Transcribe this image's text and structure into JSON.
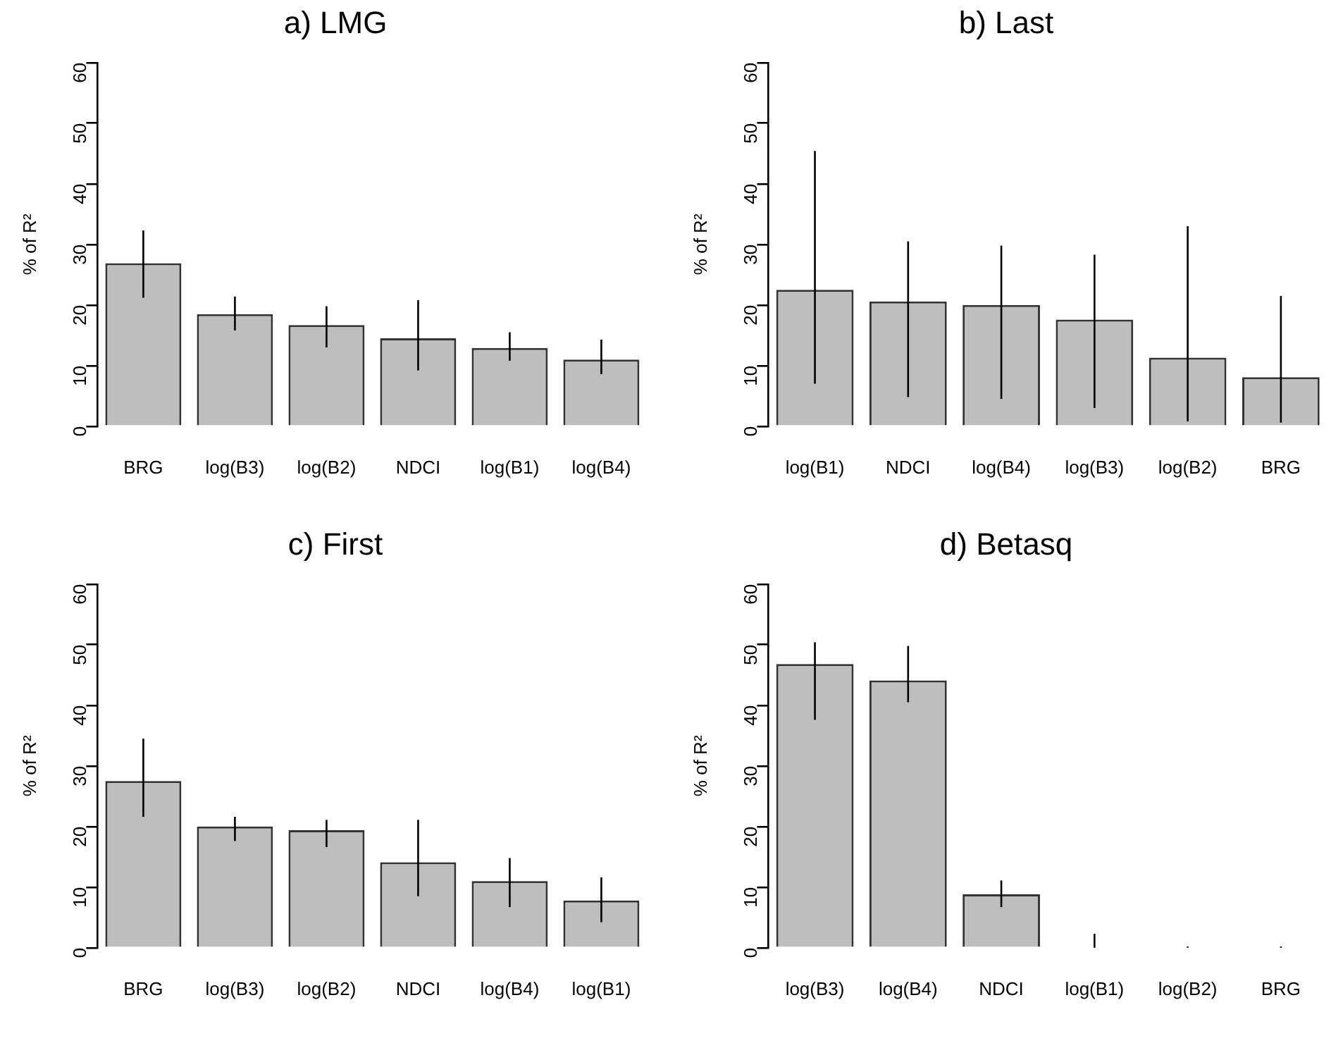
{
  "chart_data": [
    {
      "type": "bar",
      "title": "a) LMG",
      "ylabel": "% of R²",
      "categories": [
        "BRG",
        "log(B3)",
        "log(B2)",
        "NDCI",
        "log(B1)",
        "log(B4)"
      ],
      "values": [
        26.9,
        18.5,
        16.7,
        14.5,
        12.9,
        11.0
      ],
      "color": "#bebebe",
      "errors": [
        [
          21.2,
          32.3
        ],
        [
          15.8,
          21.4
        ],
        [
          13.0,
          19.8
        ],
        [
          9.2,
          20.8
        ],
        [
          10.8,
          15.5
        ],
        [
          8.6,
          14.3
        ]
      ],
      "ylim": [
        0,
        60
      ],
      "yticks": [
        0,
        10,
        20,
        30,
        40,
        50,
        60
      ],
      "grid": false,
      "legend": false
    },
    {
      "type": "bar",
      "title": "b) Last",
      "ylabel": "% of R²",
      "categories": [
        "log(B1)",
        "NDCI",
        "log(B4)",
        "log(B3)",
        "log(B2)",
        "BRG"
      ],
      "values": [
        22.5,
        20.6,
        20.0,
        17.6,
        11.3,
        8.1
      ],
      "color": "#bebebe",
      "errors": [
        [
          7.0,
          45.4
        ],
        [
          4.8,
          30.5
        ],
        [
          4.5,
          29.8
        ],
        [
          3.0,
          28.3
        ],
        [
          0.8,
          33.0
        ],
        [
          0.6,
          21.5
        ]
      ],
      "ylim": [
        0,
        60
      ],
      "yticks": [
        0,
        10,
        20,
        30,
        40,
        50,
        60
      ],
      "grid": false,
      "legend": false
    },
    {
      "type": "bar",
      "title": "c) First",
      "ylabel": "% of R²",
      "categories": [
        "BRG",
        "log(B3)",
        "log(B2)",
        "NDCI",
        "log(B4)",
        "log(B1)"
      ],
      "values": [
        27.5,
        20.0,
        19.4,
        14.1,
        11.0,
        7.8
      ],
      "color": "#bebebe",
      "errors": [
        [
          21.6,
          34.5
        ],
        [
          17.6,
          21.6
        ],
        [
          16.6,
          21.1
        ],
        [
          8.5,
          21.1
        ],
        [
          6.7,
          14.8
        ],
        [
          4.2,
          11.6
        ]
      ],
      "ylim": [
        0,
        60
      ],
      "yticks": [
        0,
        10,
        20,
        30,
        40,
        50,
        60
      ],
      "grid": false,
      "legend": false
    },
    {
      "type": "bar",
      "title": "d) Betasq",
      "ylabel": "% of R²",
      "categories": [
        "log(B3)",
        "log(B4)",
        "NDCI",
        "log(B1)",
        "log(B2)",
        "BRG"
      ],
      "values": [
        46.8,
        44.1,
        8.8,
        0,
        0,
        0
      ],
      "color": "#bebebe",
      "errors": [
        [
          37.6,
          50.4
        ],
        [
          40.5,
          49.8
        ],
        [
          6.7,
          11.1
        ],
        [
          0,
          2.3
        ],
        [
          0,
          0.2
        ],
        [
          0,
          0.2
        ]
      ],
      "ylim": [
        0,
        60
      ],
      "yticks": [
        0,
        10,
        20,
        30,
        40,
        50,
        60
      ],
      "grid": false,
      "legend": false
    }
  ]
}
